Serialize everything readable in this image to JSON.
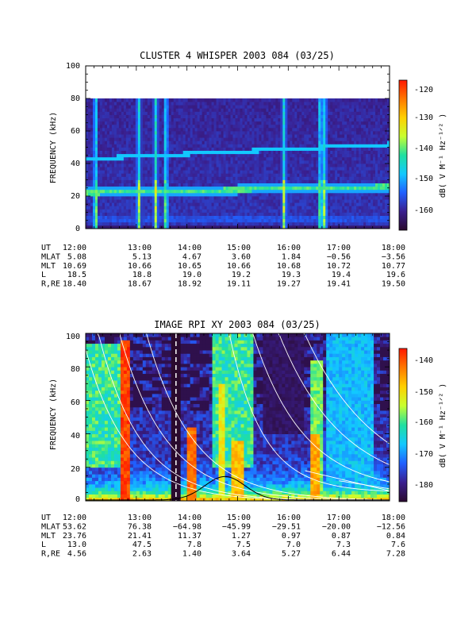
{
  "chart_data": [
    {
      "type": "heatmap",
      "title": "CLUSTER 4 WHISPER 2003 084 (03/25)",
      "ylabel": "FREQUENCY (kHz)",
      "ylim": [
        0,
        100
      ],
      "yticks": [
        "0",
        "20",
        "40",
        "60",
        "80",
        "100"
      ],
      "x_ticks": [
        "12:00",
        "13:00",
        "14:00",
        "15:00",
        "16:00",
        "17:00",
        "18:00"
      ],
      "colorbar": {
        "label": "dB( V M⁻¹ Hz⁻¹ᐟ² )",
        "ticks": [
          "-120",
          "-130",
          "-140",
          "-150",
          "-160"
        ],
        "range": [
          -166,
          -118
        ],
        "colors": [
          "#2a0a2e",
          "#3a1f8f",
          "#2060ff",
          "#12c8ff",
          "#20e0a0",
          "#c8ff30",
          "#ffd000",
          "#ff7800",
          "#ff1800"
        ]
      },
      "data_range_khz": [
        0,
        80
      ],
      "features": {
        "background_db": -158,
        "lower_line_khz": [
          22,
          26
        ],
        "upper_line_khz": [
          43,
          52
        ],
        "bursts_ut": [
          "12:12",
          "13:03",
          "13:23",
          "13:35",
          "15:55",
          "16:38",
          "16:43"
        ]
      },
      "ephemeris": {
        "rows": [
          {
            "label": "UT",
            "values": [
              "12:00",
              "13:00",
              "14:00",
              "15:00",
              "16:00",
              "17:00",
              "18:00"
            ]
          },
          {
            "label": "MLAT",
            "values": [
              "5.08",
              "5.13",
              "4.67",
              "3.60",
              "1.84",
              "−0.56",
              "−3.56"
            ]
          },
          {
            "label": "MLT",
            "values": [
              "10.69",
              "10.66",
              "10.65",
              "10.66",
              "10.68",
              "10.72",
              "10.77"
            ]
          },
          {
            "label": "L",
            "values": [
              "18.5",
              "18.8",
              "19.0",
              "19.2",
              "19.3",
              "19.4",
              "19.6"
            ]
          },
          {
            "label": "R,RE",
            "values": [
              "18.40",
              "18.67",
              "18.92",
              "19.11",
              "19.27",
              "19.41",
              "19.50"
            ]
          }
        ]
      }
    },
    {
      "type": "heatmap",
      "title": "IMAGE RPI XY 2003 084 (03/25)",
      "ylabel": "FREQUENCY (kHz)",
      "ylim": [
        0,
        100
      ],
      "yticks": [
        "0",
        "20",
        "40",
        "60",
        "80",
        "100"
      ],
      "x_ticks": [
        "12:00",
        "13:00",
        "14:00",
        "15:00",
        "16:00",
        "17:00",
        "18:00"
      ],
      "colorbar": {
        "label": "dB( V M⁻¹ Hz⁻¹ᐟ² )",
        "ticks": [
          "-140",
          "-150",
          "-160",
          "-170",
          "-180"
        ],
        "range": [
          -186,
          -134
        ],
        "colors": [
          "#2a0a2e",
          "#3a1f8f",
          "#2060ff",
          "#12c8ff",
          "#20e0a0",
          "#c8ff30",
          "#ffd000",
          "#ff7800",
          "#ff1800"
        ]
      },
      "features": {
        "white_curves": true,
        "data_gap_ut": [
          "13:42",
          "13:52"
        ]
      },
      "ephemeris": {
        "rows": [
          {
            "label": "UT",
            "values": [
              "12:00",
              "13:00",
              "14:00",
              "15:00",
              "16:00",
              "17:00",
              "18:00"
            ]
          },
          {
            "label": "MLAT",
            "values": [
              "53.62",
              "76.38",
              "−64.98",
              "−45.99",
              "−29.51",
              "−20.00",
              "−12.56"
            ]
          },
          {
            "label": "MLT",
            "values": [
              "23.76",
              "21.41",
              "11.37",
              "1.27",
              "0.97",
              "0.87",
              "0.84"
            ]
          },
          {
            "label": "L",
            "values": [
              "13.0",
              "47.5",
              "7.8",
              "7.5",
              "7.0",
              "7.3",
              "7.6"
            ]
          },
          {
            "label": "R,RE",
            "values": [
              "4.56",
              "2.63",
              "1.40",
              "3.64",
              "5.27",
              "6.44",
              "7.28"
            ]
          }
        ]
      }
    }
  ]
}
